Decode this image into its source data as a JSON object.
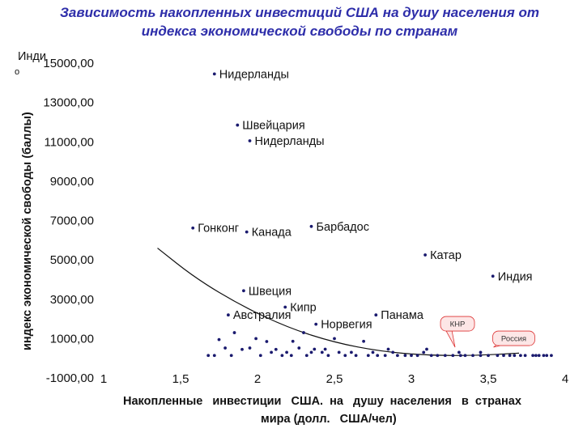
{
  "chart_data": {
    "type": "scatter",
    "title_lines": [
      "Зависимость накопленных инвестиций США на душу населения от",
      "индекса экономической свободы по странам"
    ],
    "ylabel": "индекс экономической свободы (баллы)",
    "ylabel_corner": "Инди",
    "ylabel_corner_frag": "о",
    "xlabel_lines": [
      "Накопленные   инвестиции   США.  на   душу  населения   в  странах",
      "мира (долл.   США/чел)"
    ],
    "xlim": [
      1,
      4
    ],
    "ylim": [
      -1000,
      15000
    ],
    "x_ticks": [
      {
        "value": 1,
        "label": "1"
      },
      {
        "value": 1.5,
        "label": "1,5"
      },
      {
        "value": 2,
        "label": "2"
      },
      {
        "value": 2.5,
        "label": "2,5"
      },
      {
        "value": 3,
        "label": "3"
      },
      {
        "value": 3.5,
        "label": "3,5"
      },
      {
        "value": 4,
        "label": "4"
      }
    ],
    "y_ticks": [
      {
        "value": 15000,
        "label": "15000,00"
      },
      {
        "value": 13000,
        "label": "13000,00"
      },
      {
        "value": 11000,
        "label": "11000,00"
      },
      {
        "value": 9000,
        "label": "9000,00"
      },
      {
        "value": 7000,
        "label": "7000,00"
      },
      {
        "value": 5000,
        "label": "5000,00"
      },
      {
        "value": 3000,
        "label": "3000,00"
      },
      {
        "value": 1000,
        "label": "1000,00"
      },
      {
        "value": -1000,
        "label": "-1000,00"
      }
    ],
    "point_color": "#1a1a6e",
    "labeled_points": [
      {
        "label": "Нидерланды",
        "x": 1.72,
        "y": 14450
      },
      {
        "label": "Швейцария",
        "x": 1.87,
        "y": 11850
      },
      {
        "label": "Нидерланды",
        "x": 1.95,
        "y": 11050
      },
      {
        "label": "Гонконг",
        "x": 1.58,
        "y": 6620
      },
      {
        "label": "Канада",
        "x": 1.93,
        "y": 6420
      },
      {
        "label": "Барбадос",
        "x": 2.35,
        "y": 6700
      },
      {
        "label": "Катар",
        "x": 3.09,
        "y": 5250
      },
      {
        "label": "Индия",
        "x": 3.53,
        "y": 4170
      },
      {
        "label": "Швеция",
        "x": 1.91,
        "y": 3430
      },
      {
        "label": "Кипр",
        "x": 2.18,
        "y": 2600
      },
      {
        "label": "Австралия",
        "x": 1.81,
        "y": 2200
      },
      {
        "label": "Норвегия",
        "x": 2.38,
        "y": 1730
      },
      {
        "label": "Панама",
        "x": 2.77,
        "y": 2200
      }
    ],
    "unlabeled_points": [
      [
        1.68,
        140
      ],
      [
        1.72,
        140
      ],
      [
        1.75,
        950
      ],
      [
        1.79,
        520
      ],
      [
        1.83,
        140
      ],
      [
        1.85,
        1300
      ],
      [
        1.9,
        450
      ],
      [
        1.95,
        520
      ],
      [
        1.99,
        1000
      ],
      [
        2.02,
        140
      ],
      [
        2.06,
        850
      ],
      [
        2.09,
        300
      ],
      [
        2.12,
        450
      ],
      [
        2.16,
        140
      ],
      [
        2.19,
        300
      ],
      [
        2.23,
        860
      ],
      [
        2.27,
        520
      ],
      [
        2.3,
        1300
      ],
      [
        2.32,
        140
      ],
      [
        2.35,
        300
      ],
      [
        2.37,
        460
      ],
      [
        2.42,
        300
      ],
      [
        2.46,
        140
      ],
      [
        2.5,
        1000
      ],
      [
        2.53,
        300
      ],
      [
        2.57,
        140
      ],
      [
        2.61,
        300
      ],
      [
        2.64,
        140
      ],
      [
        2.69,
        860
      ],
      [
        2.72,
        140
      ],
      [
        2.75,
        300
      ],
      [
        2.78,
        140
      ],
      [
        2.83,
        140
      ],
      [
        2.88,
        300
      ],
      [
        2.91,
        140
      ],
      [
        2.96,
        140
      ],
      [
        3.0,
        140
      ],
      [
        3.04,
        140
      ],
      [
        3.08,
        300
      ],
      [
        3.13,
        140
      ],
      [
        3.17,
        140
      ],
      [
        3.22,
        140
      ],
      [
        3.27,
        140
      ],
      [
        3.31,
        300
      ],
      [
        3.35,
        140
      ],
      [
        3.4,
        140
      ],
      [
        3.45,
        140
      ],
      [
        3.5,
        140
      ],
      [
        3.56,
        140
      ],
      [
        3.6,
        140
      ],
      [
        3.64,
        140
      ],
      [
        3.67,
        140
      ],
      [
        3.71,
        140
      ],
      [
        3.74,
        140
      ],
      [
        3.79,
        140
      ],
      [
        3.81,
        140
      ],
      [
        3.83,
        140
      ],
      [
        3.86,
        140
      ],
      [
        3.88,
        140
      ],
      [
        3.91,
        140
      ],
      [
        2.22,
        140
      ],
      [
        2.44,
        460
      ],
      [
        2.85,
        460
      ],
      [
        3.1,
        460
      ],
      [
        3.32,
        140
      ],
      [
        3.45,
        300
      ]
    ],
    "trendline": [
      [
        1.35,
        5600
      ],
      [
        1.6,
        4050
      ],
      [
        1.9,
        2650
      ],
      [
        2.2,
        1550
      ],
      [
        2.5,
        800
      ],
      [
        2.8,
        350
      ],
      [
        3.1,
        150
      ],
      [
        3.4,
        130
      ],
      [
        3.7,
        260
      ]
    ],
    "callouts": [
      {
        "label": "КНР",
        "x": 3.3,
        "y": 520
      },
      {
        "label": "Россия",
        "x": 3.55,
        "y": 520
      }
    ]
  }
}
